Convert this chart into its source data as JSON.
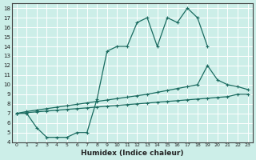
{
  "xlabel": "Humidex (Indice chaleur)",
  "bg_color": "#cceee8",
  "line_color": "#1a6b60",
  "grid_color": "#ffffff",
  "line1_x": [
    0,
    1,
    2,
    3,
    4,
    5,
    6,
    7,
    8,
    9,
    10,
    11,
    12,
    13,
    14,
    15,
    16,
    17,
    18,
    19
  ],
  "line1_y": [
    7,
    7,
    5.5,
    4.5,
    4.5,
    4.5,
    5.0,
    5.0,
    8.5,
    13.5,
    14,
    14,
    16.5,
    17,
    14,
    17,
    16.5,
    18,
    17,
    14
  ],
  "line2_x": [
    0,
    1,
    2,
    3,
    4,
    5,
    6,
    7,
    8,
    9,
    10,
    11,
    12,
    13,
    14,
    15,
    16,
    17,
    18,
    19,
    20,
    21,
    22,
    23
  ],
  "line2_y": [
    7,
    7.2,
    7.35,
    7.5,
    7.65,
    7.8,
    7.95,
    8.1,
    8.25,
    8.4,
    8.55,
    8.7,
    8.85,
    9.0,
    9.2,
    9.4,
    9.6,
    9.8,
    10.0,
    12,
    10.5,
    10.0,
    9.8,
    9.5
  ],
  "line3_x": [
    0,
    1,
    2,
    3,
    4,
    5,
    6,
    7,
    8,
    9,
    10,
    11,
    12,
    13,
    14,
    15,
    16,
    17,
    18,
    19,
    20,
    21,
    22,
    23
  ],
  "line3_y": [
    7,
    7.08,
    7.17,
    7.25,
    7.33,
    7.42,
    7.5,
    7.58,
    7.67,
    7.75,
    7.83,
    7.92,
    8.0,
    8.08,
    8.17,
    8.25,
    8.33,
    8.42,
    8.5,
    8.58,
    8.67,
    8.75,
    9.0,
    9.0
  ],
  "xlim": [
    -0.5,
    23.5
  ],
  "ylim": [
    4,
    18.5
  ],
  "xticks": [
    0,
    1,
    2,
    3,
    4,
    5,
    6,
    7,
    8,
    9,
    10,
    11,
    12,
    13,
    14,
    15,
    16,
    17,
    18,
    19,
    20,
    21,
    22,
    23
  ],
  "yticks": [
    4,
    5,
    6,
    7,
    8,
    9,
    10,
    11,
    12,
    13,
    14,
    15,
    16,
    17,
    18
  ]
}
